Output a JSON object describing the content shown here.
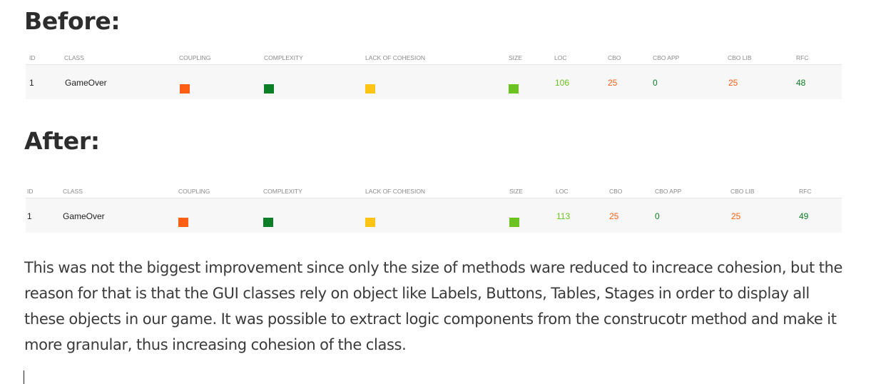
{
  "before": {
    "heading": "Before:",
    "columns": [
      "ID",
      "CLASS",
      "COUPLING",
      "COMPLEXITY",
      "LACK OF COHESION",
      "SIZE",
      "LOC",
      "CBO",
      "CBO APP",
      "CBO LIB",
      "RFC"
    ],
    "row": {
      "id": "1",
      "class": "GameOver",
      "coupling_color": "#ff5f14",
      "complexity_color": "#0b7f25",
      "lack_of_cohesion_color": "#ffc414",
      "size_color": "#6ac321",
      "loc": "106",
      "loc_color": "#6ac321",
      "cbo": "25",
      "cbo_color": "#ff5f14",
      "cbo_app": "0",
      "cbo_app_color": "#0b7f25",
      "cbo_lib": "25",
      "cbo_lib_color": "#ff5f14",
      "rfc": "48",
      "rfc_color": "#0b7f25"
    }
  },
  "after": {
    "heading": "After:",
    "columns": [
      "ID",
      "CLASS",
      "COUPLING",
      "COMPLEXITY",
      "LACK OF COHESION",
      "SIZE",
      "LOC",
      "CBO",
      "CBO APP",
      "CBO LIB",
      "RFC"
    ],
    "row": {
      "id": "1",
      "class": "GameOver",
      "coupling_color": "#ff5f14",
      "complexity_color": "#0b7f25",
      "lack_of_cohesion_color": "#ffc414",
      "size_color": "#6ac321",
      "loc": "113",
      "loc_color": "#6ac321",
      "cbo": "25",
      "cbo_color": "#ff5f14",
      "cbo_app": "0",
      "cbo_app_color": "#0b7f25",
      "cbo_lib": "25",
      "cbo_lib_color": "#ff5f14",
      "rfc": "49",
      "rfc_color": "#0b7f25"
    }
  },
  "paragraph": "This was not the biggest improvement since only the size of methods ware reduced to increace cohesion, but the reason for that is that the GUI classes rely on object like Labels, Buttons, Tables, Stages in order to display all these objects in our game. It was possible to extract logic components from the construcotr method and make it more granular, thus increasing cohesion of the class."
}
